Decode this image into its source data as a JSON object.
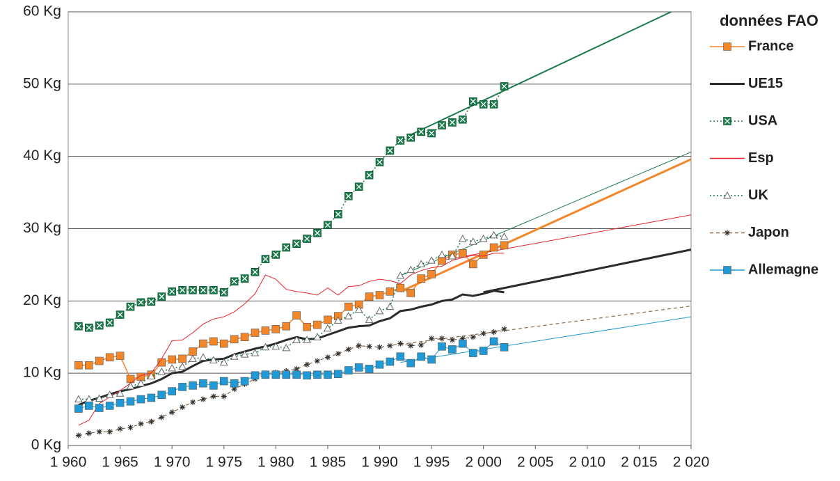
{
  "chart_data": {
    "type": "line",
    "legend_title": "données FAO",
    "legend": "right",
    "grid": true,
    "x": [
      1961,
      1962,
      1963,
      1964,
      1965,
      1966,
      1967,
      1968,
      1969,
      1970,
      1971,
      1972,
      1973,
      1974,
      1975,
      1976,
      1977,
      1978,
      1979,
      1980,
      1981,
      1982,
      1983,
      1984,
      1985,
      1986,
      1987,
      1988,
      1989,
      1990,
      1991,
      1992,
      1993,
      1994,
      1995,
      1996,
      1997,
      1998,
      1999,
      2000,
      2001,
      2002
    ],
    "xlim": [
      1960,
      2020
    ],
    "xticks": [
      {
        "value": 1960,
        "label": "1 960"
      },
      {
        "value": 1965,
        "label": "1 965"
      },
      {
        "value": 1970,
        "label": "1 970"
      },
      {
        "value": 1975,
        "label": "1 975"
      },
      {
        "value": 1980,
        "label": "1 980"
      },
      {
        "value": 1985,
        "label": "1 985"
      },
      {
        "value": 1990,
        "label": "1 990"
      },
      {
        "value": 1995,
        "label": "1 995"
      },
      {
        "value": 2000,
        "label": "2 000"
      },
      {
        "value": 2005,
        "label": "2 005"
      },
      {
        "value": 2010,
        "label": "2 010"
      },
      {
        "value": 2015,
        "label": "2 015"
      },
      {
        "value": 2020,
        "label": "2 020"
      }
    ],
    "ylim": [
      0,
      60
    ],
    "yticks": [
      {
        "value": 0,
        "label": "0 Kg"
      },
      {
        "value": 10,
        "label": "10 Kg"
      },
      {
        "value": 20,
        "label": "20 Kg"
      },
      {
        "value": 30,
        "label": "30 Kg"
      },
      {
        "value": 40,
        "label": "40 Kg"
      },
      {
        "value": 50,
        "label": "50 Kg"
      },
      {
        "value": 60,
        "label": "60 Kg"
      }
    ],
    "series": [
      {
        "name": "France",
        "color": "#f4862a",
        "marker": "square",
        "width": 1.5,
        "values": [
          11.1,
          11.1,
          11.7,
          12.2,
          12.4,
          9.2,
          9.5,
          9.8,
          11.5,
          11.9,
          12.0,
          13.0,
          14.1,
          14.4,
          14.1,
          14.7,
          15.0,
          15.6,
          15.9,
          16.1,
          16.5,
          18.0,
          16.4,
          16.7,
          17.4,
          17.9,
          19.2,
          19.5,
          20.6,
          20.8,
          21.3,
          21.8,
          21.1,
          23.1,
          23.7,
          25.6,
          26.4,
          26.6,
          25.1,
          26.4,
          27.4,
          27.7
        ]
      },
      {
        "name": "UE15",
        "color": "#2b2b2b",
        "marker": "none",
        "width": 3,
        "values": [
          5.6,
          6.2,
          6.6,
          7.1,
          7.5,
          7.8,
          8.2,
          8.6,
          9.2,
          10.0,
          10.2,
          11.0,
          11.7,
          11.9,
          12.0,
          12.6,
          13.0,
          13.4,
          13.7,
          14.1,
          14.6,
          15.0,
          14.7,
          14.8,
          15.3,
          15.8,
          16.3,
          16.5,
          16.6,
          17.2,
          17.6,
          18.6,
          18.8,
          19.2,
          19.5,
          20.0,
          20.2,
          20.9,
          20.7,
          21.0,
          21.4,
          21.2
        ]
      },
      {
        "name": "USA",
        "color": "#1a7a4a",
        "marker": "xsquare",
        "width": 1.5,
        "dash": "2,3",
        "values": [
          16.5,
          16.3,
          16.6,
          17.0,
          18.1,
          19.2,
          19.8,
          19.9,
          20.6,
          21.3,
          21.5,
          21.5,
          21.5,
          21.5,
          21.2,
          22.7,
          23.1,
          24.0,
          25.8,
          26.4,
          27.4,
          27.9,
          28.6,
          29.4,
          30.5,
          32.0,
          34.5,
          35.8,
          37.4,
          39.2,
          40.8,
          42.2,
          42.6,
          43.4,
          43.2,
          44.3,
          44.7,
          45.1,
          47.6,
          47.2,
          47.2,
          49.7
        ]
      },
      {
        "name": "Esp",
        "color": "#e8202a",
        "marker": "none",
        "width": 1,
        "values": [
          2.8,
          3.5,
          5.8,
          6.7,
          7.6,
          8.6,
          9.7,
          10.0,
          12.0,
          14.5,
          14.6,
          15.6,
          16.8,
          17.5,
          17.8,
          18.5,
          19.6,
          21.0,
          23.6,
          23.0,
          21.6,
          21.3,
          21.1,
          20.8,
          21.8,
          20.8,
          22.0,
          22.1,
          22.7,
          23.0,
          22.8,
          22.4,
          23.6,
          24.2,
          24.6,
          24.8,
          25.6,
          26.0,
          26.3,
          26.2,
          26.6,
          26.6
        ]
      },
      {
        "name": "UK",
        "color": "#1a7a4a",
        "marker": "triangle",
        "width": 1.5,
        "dash": "2,3",
        "values": [
          6.4,
          6.4,
          6.5,
          7.0,
          7.2,
          8.2,
          8.6,
          9.6,
          10.2,
          10.7,
          10.9,
          12.0,
          12.2,
          11.8,
          11.5,
          12.3,
          12.6,
          12.8,
          13.6,
          13.7,
          13.5,
          14.6,
          14.6,
          15.0,
          16.2,
          17.3,
          17.9,
          18.8,
          17.4,
          18.6,
          19.2,
          23.5,
          24.3,
          25.1,
          25.6,
          26.4,
          26.2,
          28.6,
          28.2,
          28.6,
          29.1,
          28.9
        ]
      },
      {
        "name": "Japon",
        "color": "#8a6a4a",
        "marker": "star",
        "width": 1.2,
        "dash": "5,4",
        "values": [
          1.4,
          1.7,
          1.9,
          1.9,
          2.3,
          2.5,
          3.0,
          3.3,
          3.9,
          4.6,
          5.3,
          6.0,
          6.4,
          6.8,
          6.8,
          7.8,
          8.5,
          9.2,
          9.9,
          10.1,
          10.3,
          10.6,
          11.2,
          11.7,
          12.2,
          12.7,
          13.3,
          13.8,
          13.7,
          13.6,
          13.8,
          14.1,
          13.8,
          13.9,
          14.8,
          14.8,
          14.6,
          14.8,
          15.0,
          15.5,
          15.7,
          16.1
        ]
      },
      {
        "name": "Allemagne",
        "color": "#1f9ad6",
        "marker": "square",
        "width": 1,
        "values": [
          5.1,
          5.5,
          5.2,
          5.5,
          5.9,
          6.1,
          6.4,
          6.6,
          7.0,
          7.5,
          8.1,
          8.3,
          8.6,
          8.3,
          8.9,
          8.6,
          8.9,
          9.7,
          9.8,
          9.8,
          9.8,
          9.8,
          9.7,
          9.8,
          9.8,
          9.9,
          10.4,
          10.8,
          10.6,
          11.2,
          11.6,
          12.3,
          11.4,
          12.3,
          11.9,
          13.7,
          13.3,
          14.1,
          12.8,
          13.1,
          14.4,
          13.6
        ]
      }
    ],
    "trendlines": [
      {
        "color": "#1a7a4a",
        "width": 2,
        "x": [
          1993,
          2020
        ],
        "values": [
          43.0,
          61.3
        ]
      },
      {
        "color": "#1a7a4a",
        "width": 1,
        "x": [
          1992,
          2020
        ],
        "values": [
          23.5,
          40.6
        ]
      },
      {
        "color": "#f4862a",
        "width": 3,
        "x": [
          1992,
          2020
        ],
        "values": [
          21.3,
          39.6
        ]
      },
      {
        "color": "#e8202a",
        "width": 1,
        "x": [
          1996,
          2020
        ],
        "values": [
          25.6,
          31.9
        ]
      },
      {
        "color": "#2b2b2b",
        "width": 3,
        "x": [
          2000,
          2020
        ],
        "values": [
          21.2,
          27.1
        ]
      },
      {
        "color": "#8a6a4a",
        "width": 1.2,
        "dash": "5,4",
        "x": [
          1992,
          2020
        ],
        "values": [
          14.0,
          19.3
        ]
      },
      {
        "color": "#1f9ad6",
        "width": 1,
        "x": [
          1992,
          2020
        ],
        "values": [
          11.5,
          17.8
        ]
      }
    ]
  }
}
